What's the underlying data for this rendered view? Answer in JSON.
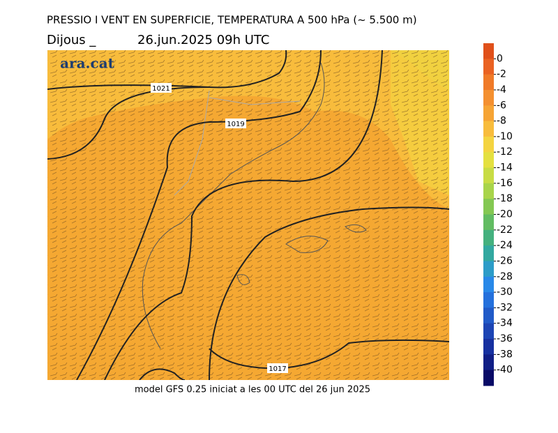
{
  "header": {
    "title": "PRESSIO I VENT EN SUPERFICIE, TEMPERATURA A 500 hPa (~ 5.500 m)",
    "day": "Dijous _",
    "date": "26.jun.2025 09h UTC"
  },
  "logo": "ara.cat",
  "isobars": [
    1021,
    1019,
    1017
  ],
  "footer": "model GFS 0.25 iniciat a les 00 UTC del 26 jun 2025",
  "colorbar": {
    "range": [
      2,
      -42
    ],
    "ticks": [
      0,
      -2,
      -4,
      -6,
      -8,
      -10,
      -12,
      -14,
      -16,
      -18,
      -20,
      -22,
      -24,
      -26,
      -28,
      -30,
      -32,
      -34,
      -36,
      -38,
      -40
    ],
    "colors": [
      "#e0501a",
      "#ea6222",
      "#f07a28",
      "#f49030",
      "#f6a434",
      "#f8bc3c",
      "#f4d440",
      "#e4e040",
      "#c8dc44",
      "#a8d44a",
      "#84c852",
      "#62bc62",
      "#44b07e",
      "#32a8a0",
      "#2c9cc8",
      "#2888e8",
      "#2470dc",
      "#205ac8",
      "#1c44b4",
      "#1630a0",
      "#101e86",
      "#080a66"
    ]
  }
}
